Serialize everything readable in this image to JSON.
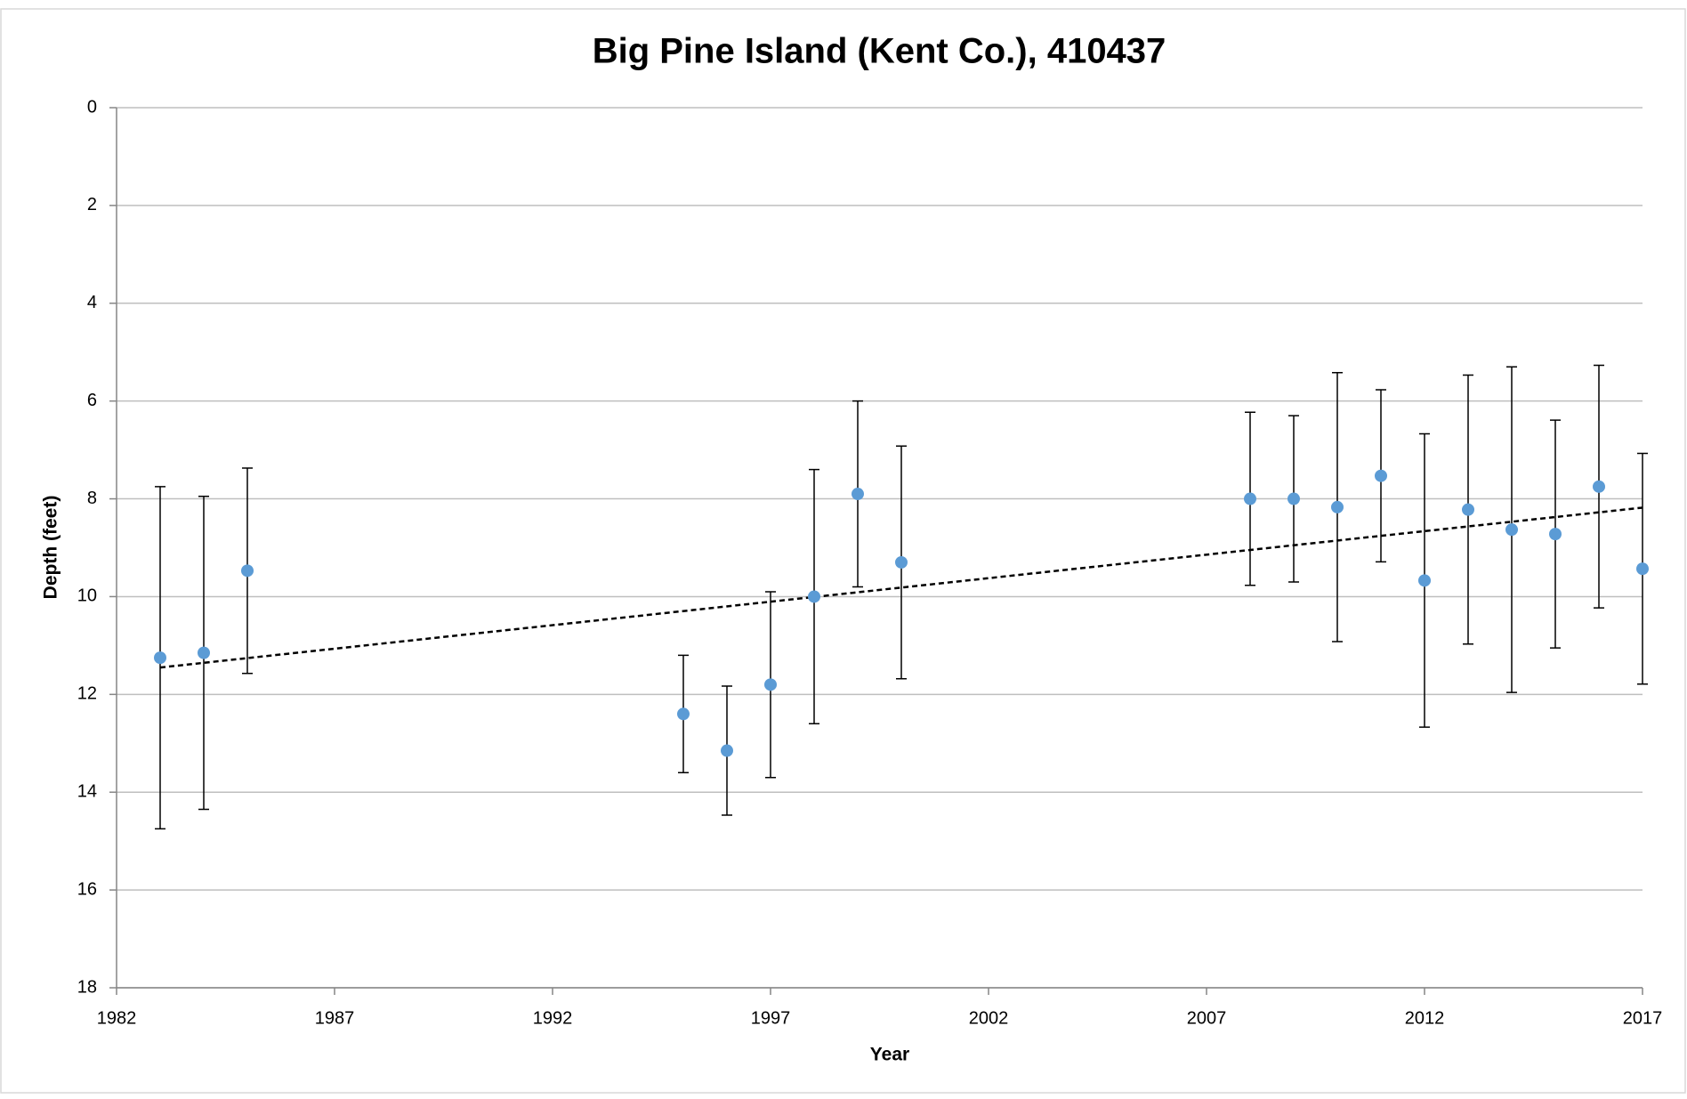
{
  "chart_data": {
    "type": "scatter",
    "title": "Big Pine Island (Kent Co.), 410437",
    "x_label": "Year",
    "y_label": "Depth (feet)",
    "x": [
      1983,
      1984,
      1985,
      1995,
      1996,
      1997,
      1998,
      1999,
      2000,
      2008,
      2009,
      2010,
      2011,
      2012,
      2013,
      2014,
      2015,
      2016,
      2017
    ],
    "values": [
      11.25,
      11.15,
      9.47,
      12.4,
      13.15,
      11.8,
      10.0,
      7.9,
      9.3,
      8.0,
      8.0,
      8.17,
      7.53,
      9.67,
      8.22,
      8.63,
      8.72,
      7.75,
      9.43
    ],
    "errors": [
      3.5,
      3.2,
      2.1,
      1.2,
      1.32,
      1.9,
      2.6,
      1.9,
      2.38,
      1.77,
      1.7,
      2.75,
      1.76,
      3.0,
      2.75,
      3.33,
      2.33,
      2.48,
      2.36
    ],
    "color": "#5b9bd5",
    "trendline": {
      "x": [
        1983,
        2017
      ],
      "y": [
        11.45,
        8.18
      ],
      "color": "#000000"
    },
    "xlim": [
      1982,
      2017
    ],
    "xticks": [
      1982,
      1987,
      1992,
      1997,
      2002,
      2007,
      2012,
      2017
    ],
    "ylim": [
      0,
      18
    ],
    "yticks": [
      0,
      2,
      4,
      6,
      8,
      10,
      12,
      14,
      16,
      18
    ],
    "y_reversed": true,
    "grid": true
  }
}
